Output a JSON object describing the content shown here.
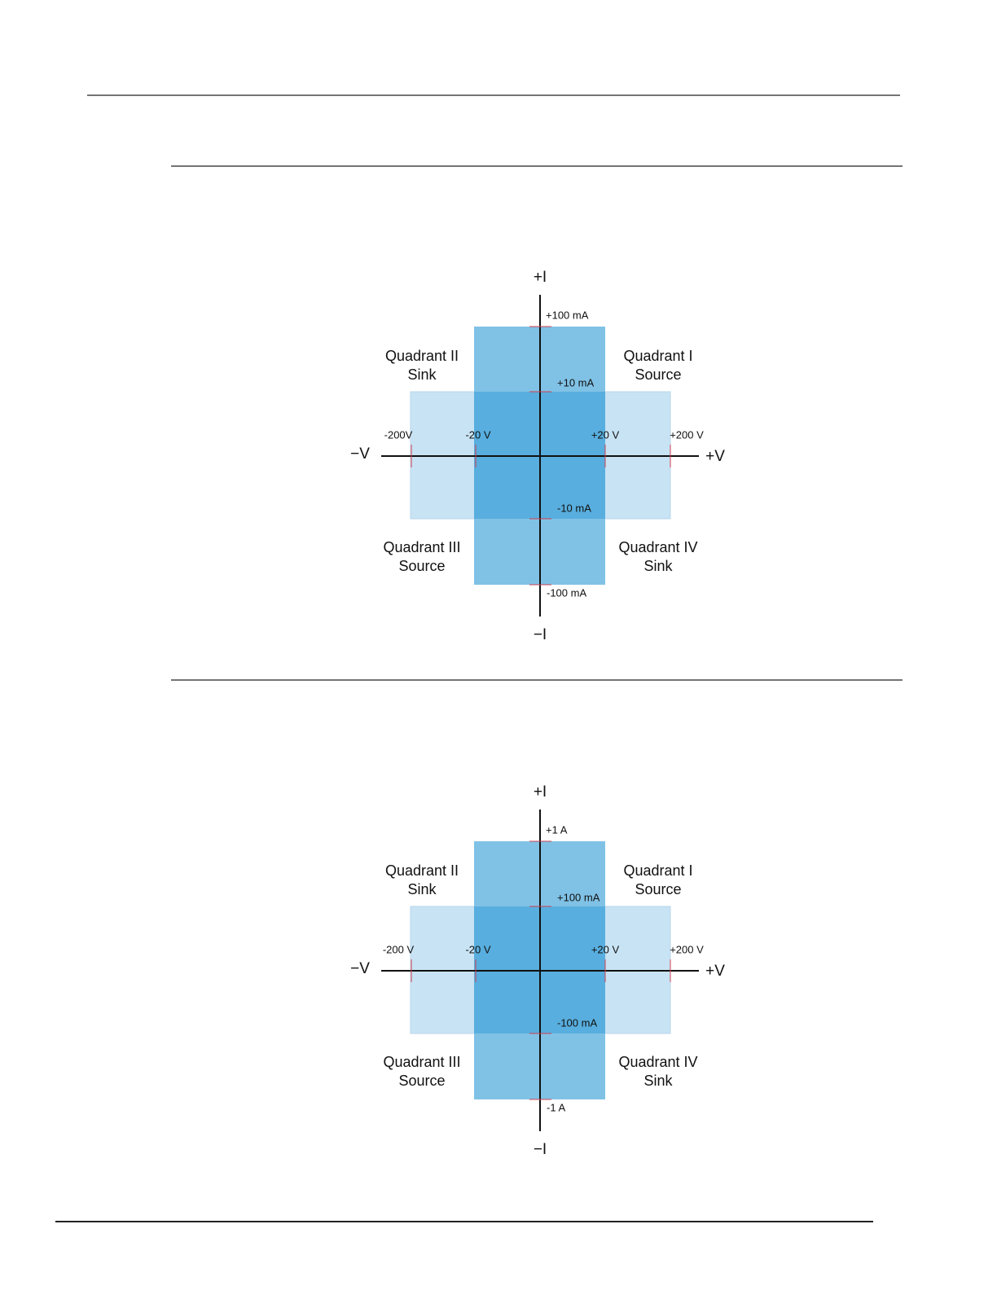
{
  "diagrams": [
    {
      "axes": {
        "plus_i": "+I",
        "minus_i": "−I",
        "minus_v": "−V",
        "plus_v": "+V"
      },
      "ticks": {
        "i_high_pos": "+100 mA",
        "i_low_pos": "+10 mA",
        "i_low_neg": "-10 mA",
        "i_high_neg": "-100 mA",
        "v_high_neg": "-200V",
        "v_low_neg": "-20 V",
        "v_low_pos": "+20 V",
        "v_high_pos": "+200 V"
      },
      "quadrants": [
        {
          "name": "Quadrant I",
          "mode": "Source"
        },
        {
          "name": "Quadrant II",
          "mode": "Sink"
        },
        {
          "name": "Quadrant III",
          "mode": "Source"
        },
        {
          "name": "Quadrant IV",
          "mode": "Sink"
        }
      ]
    },
    {
      "axes": {
        "plus_i": "+I",
        "minus_i": "−I",
        "minus_v": "−V",
        "plus_v": "+V"
      },
      "ticks": {
        "i_high_pos": "+1 A",
        "i_low_pos": "+100 mA",
        "i_low_neg": "-100 mA",
        "i_high_neg": "-1 A",
        "v_high_neg": "-200 V",
        "v_low_neg": "-20 V",
        "v_low_pos": "+20 V",
        "v_high_pos": "+200 V"
      },
      "quadrants": [
        {
          "name": "Quadrant I",
          "mode": "Source"
        },
        {
          "name": "Quadrant II",
          "mode": "Sink"
        },
        {
          "name": "Quadrant III",
          "mode": "Source"
        },
        {
          "name": "Quadrant IV",
          "mode": "Sink"
        }
      ]
    }
  ]
}
